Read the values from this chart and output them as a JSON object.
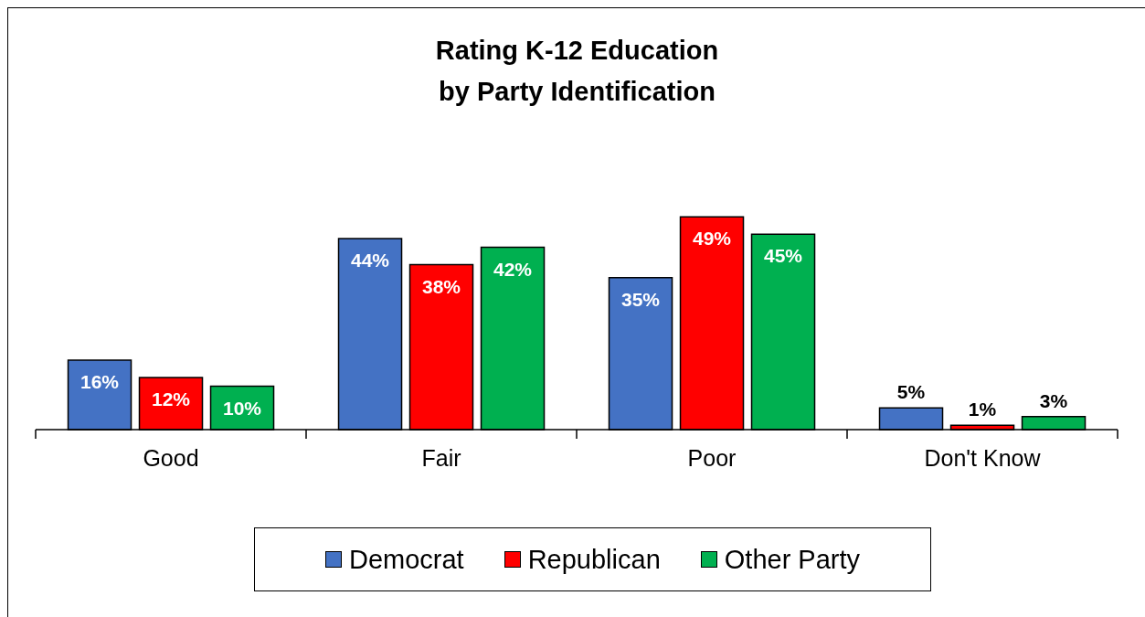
{
  "chart_data": {
    "type": "bar",
    "title": "Rating K-12 Education\nby Party Identification",
    "categories": [
      "Good",
      "Fair",
      "Poor",
      "Don't Know"
    ],
    "series": [
      {
        "name": "Democrat",
        "color": "#4472c4",
        "values": [
          16,
          44,
          35,
          5
        ],
        "value_labels": [
          "16%",
          "44%",
          "35%",
          "5%"
        ]
      },
      {
        "name": "Republican",
        "color": "#ff0000",
        "values": [
          12,
          38,
          49,
          1
        ],
        "value_labels": [
          "12%",
          "38%",
          "49%",
          "1%"
        ]
      },
      {
        "name": "Other Party",
        "color": "#00b050",
        "values": [
          10,
          42,
          45,
          3
        ],
        "value_labels": [
          "10%",
          "42%",
          "45%",
          "3%"
        ]
      }
    ],
    "legend": "bottom"
  }
}
